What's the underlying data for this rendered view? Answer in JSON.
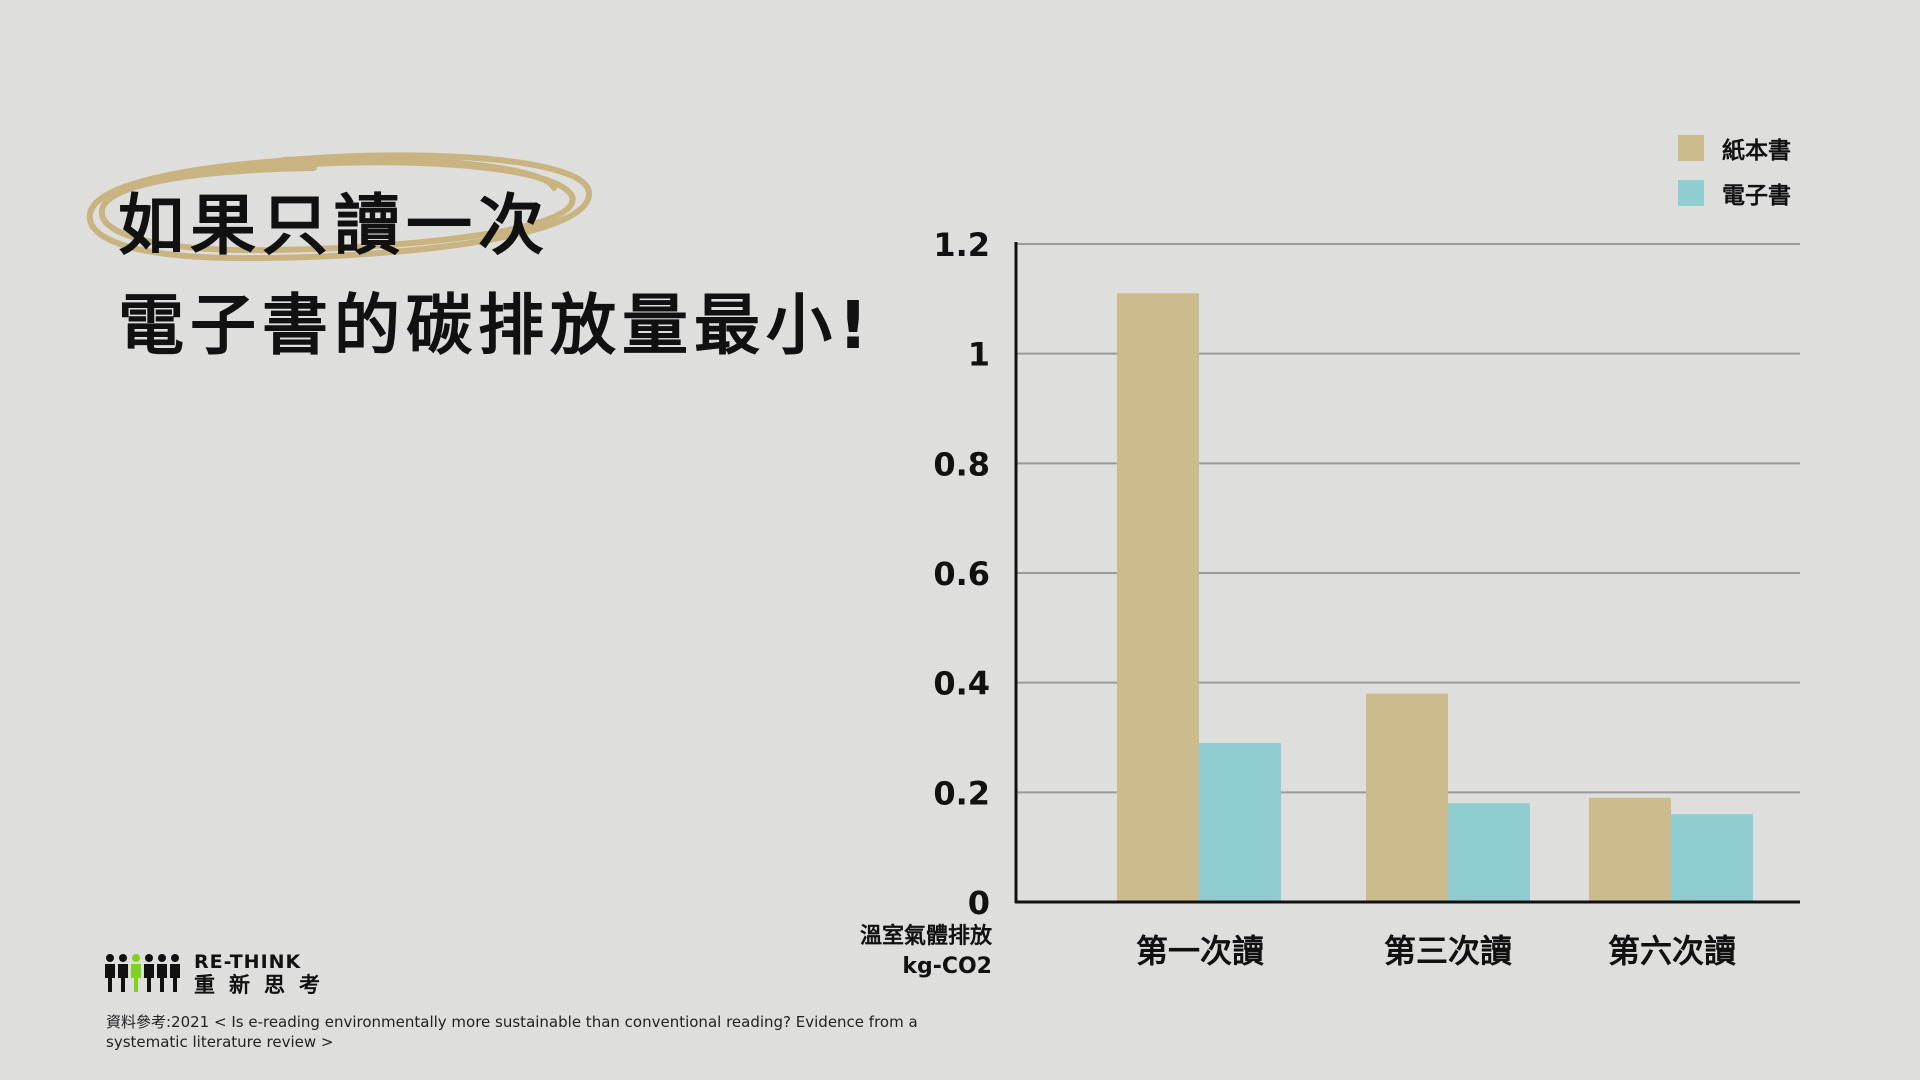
{
  "headline": {
    "line1": "如果只讀一次",
    "line2": "電子書的碳排放量最小!"
  },
  "colors": {
    "paper": "#ccbb8d",
    "ebook": "#90cdd1",
    "scribble": "#c9b481",
    "grid": "#9a9a9a"
  },
  "legend": [
    {
      "label": "紙本書",
      "color": "#ccbb8d"
    },
    {
      "label": "電子書",
      "color": "#90cdd1"
    }
  ],
  "chart_data": {
    "type": "bar",
    "categories": [
      "第一次讀",
      "第三次讀",
      "第六次讀"
    ],
    "series": [
      {
        "name": "紙本書",
        "values": [
          1.11,
          0.38,
          0.19
        ]
      },
      {
        "name": "電子書",
        "values": [
          0.29,
          0.18,
          0.16
        ]
      }
    ],
    "yticks": [
      "0",
      "0.2",
      "0.4",
      "0.6",
      "0.8",
      "1",
      "1.2"
    ],
    "ylim": [
      0,
      1.2
    ],
    "ylabel_line1": "溫室氣體排放",
    "ylabel_line2": "kg-CO2",
    "grid": true,
    "legend_position": "top-right"
  },
  "logo": {
    "en": "RE-THINK",
    "zh": "重新思考"
  },
  "source": "資料參考:2021 < Is e-reading environmentally more sustainable than conventional reading? Evidence from a systematic literature review >"
}
